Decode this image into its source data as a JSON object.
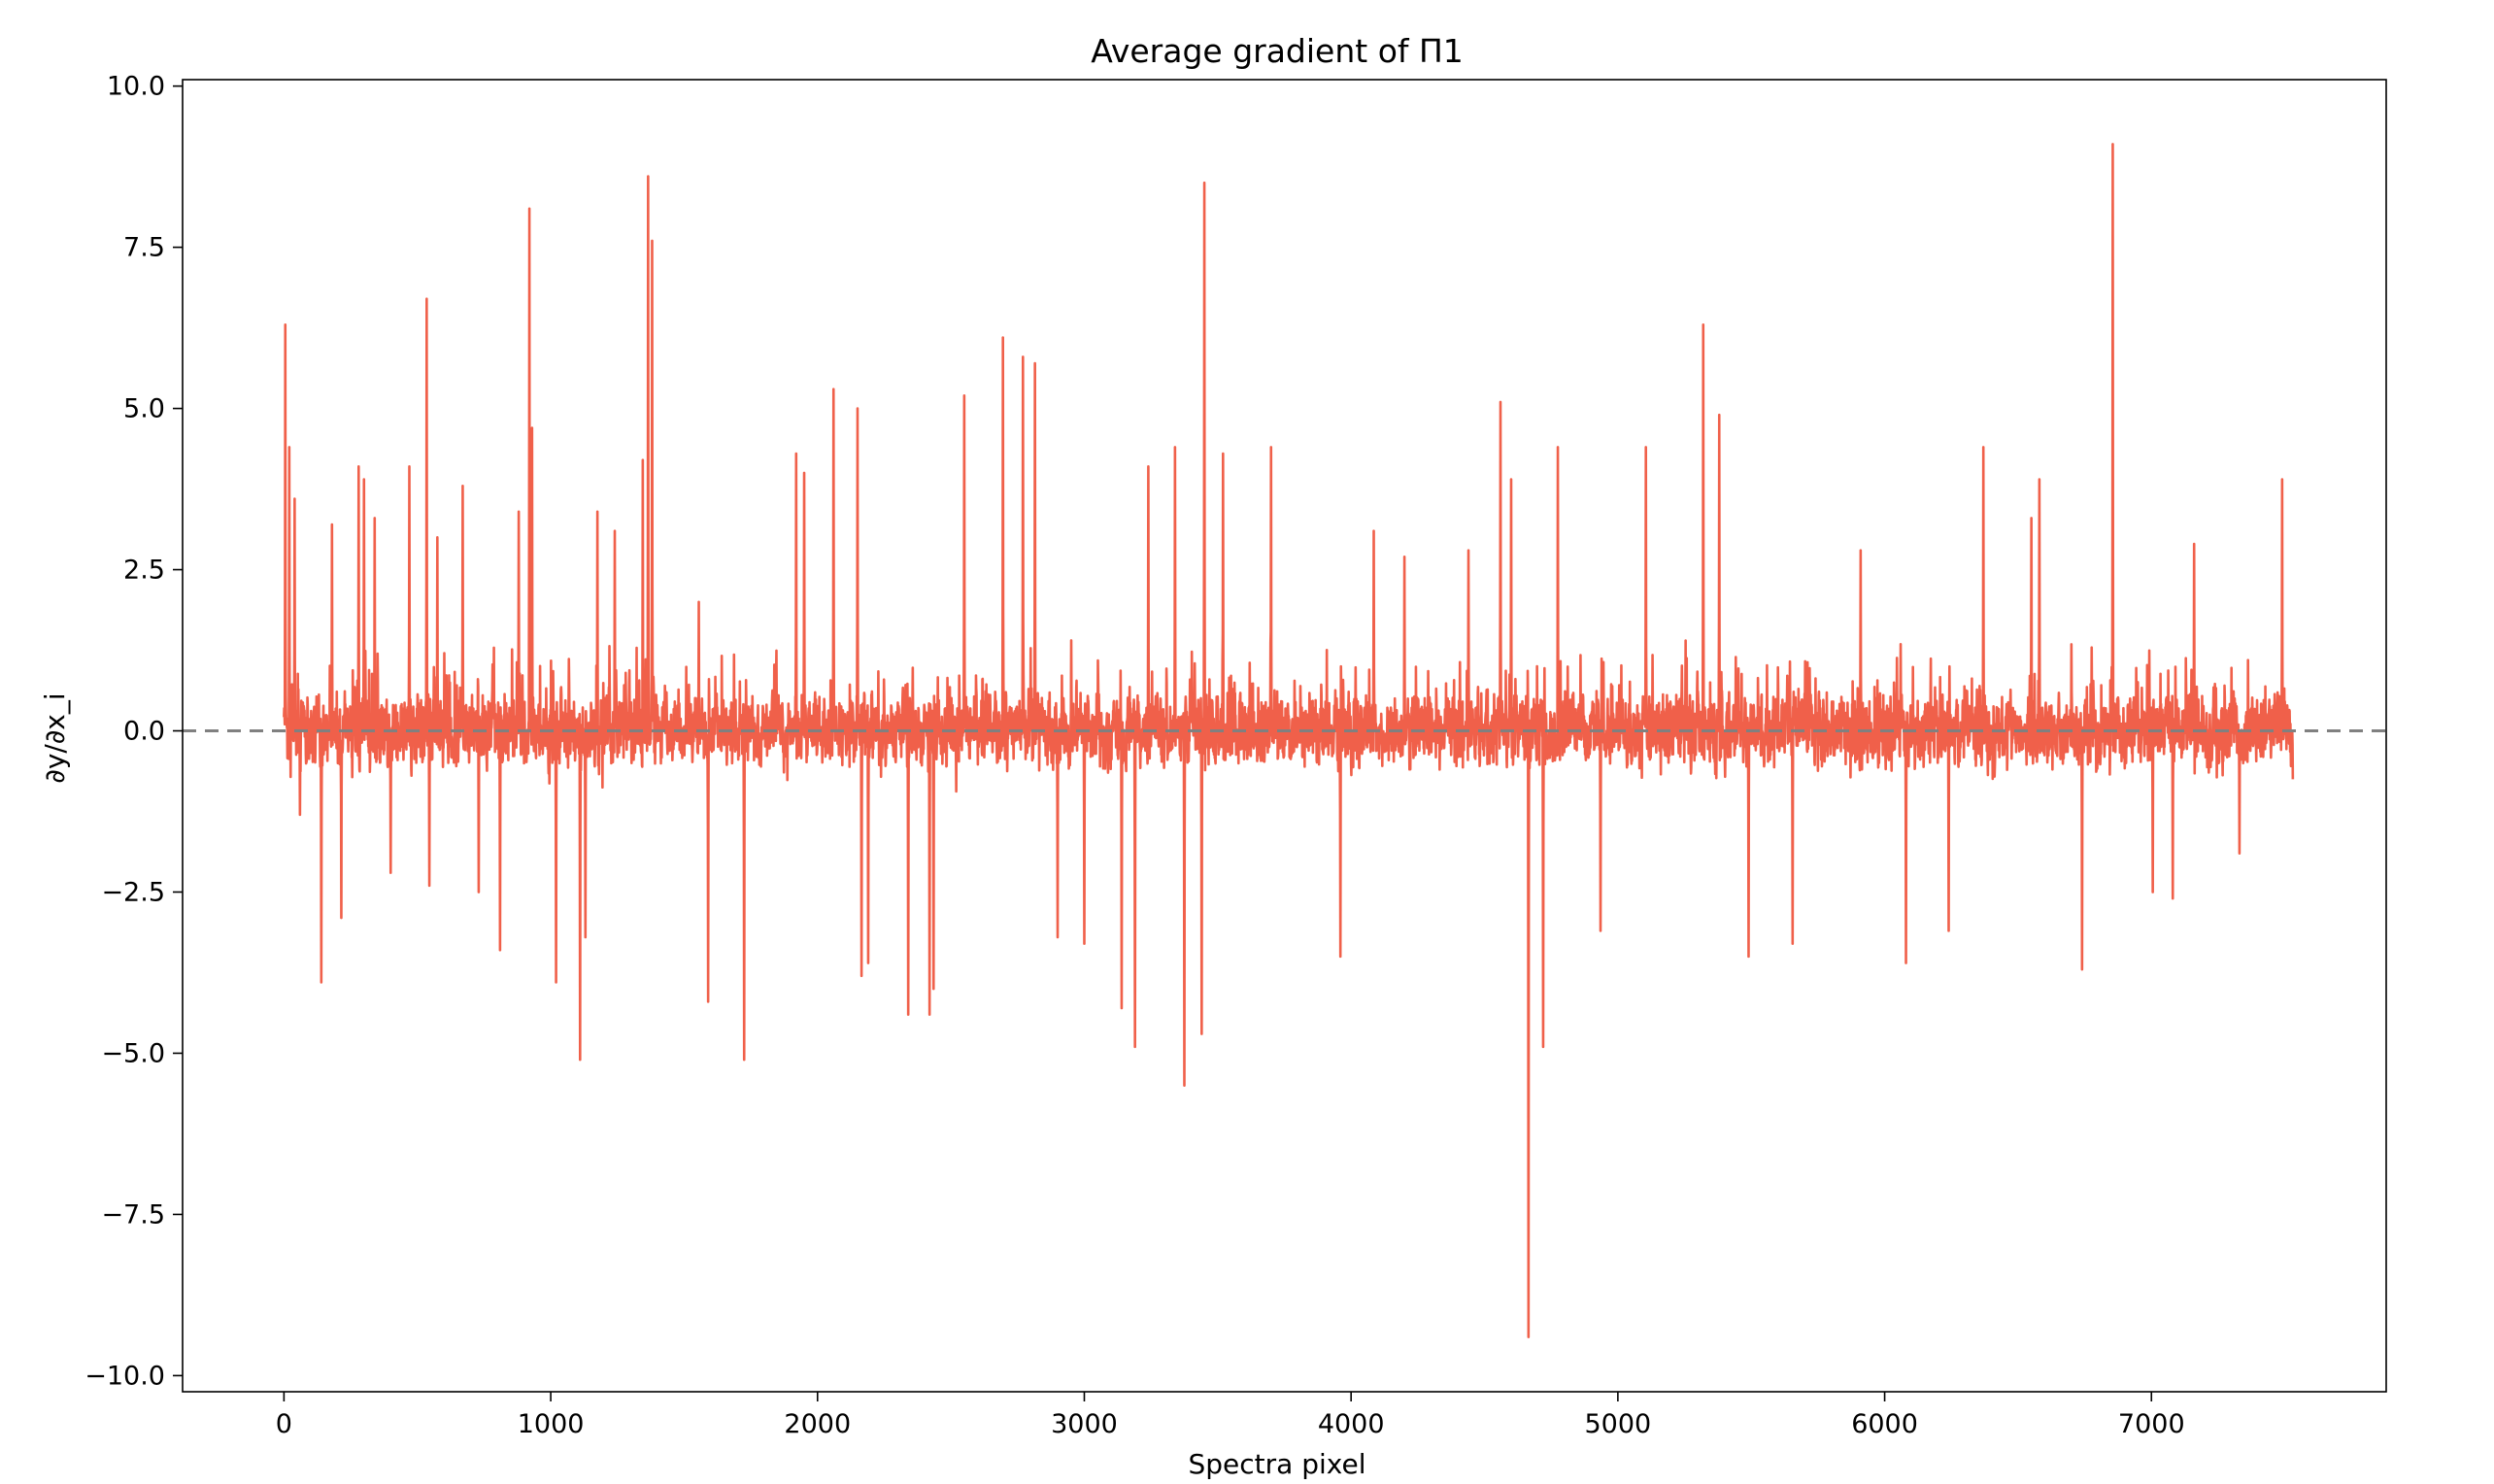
{
  "chart_data": {
    "type": "line",
    "title": "Average gradient of Π1",
    "xlabel": "Spectra pixel",
    "ylabel": "∂y/∂x_i",
    "xlim": [
      -380,
      7880
    ],
    "ylim": [
      -10.25,
      10.1
    ],
    "xticks": [
      0,
      1000,
      2000,
      3000,
      4000,
      5000,
      6000,
      7000
    ],
    "xtick_labels": [
      "0",
      "1000",
      "2000",
      "3000",
      "4000",
      "5000",
      "6000",
      "7000"
    ],
    "yticks": [
      10.0,
      7.5,
      5.0,
      2.5,
      0.0,
      -2.5,
      -5.0,
      -7.5,
      -10.0
    ],
    "ytick_labels": [
      "10.0",
      "7.5",
      "5.0",
      "2.5",
      "0.0",
      "−2.5",
      "−5.0",
      "−7.5",
      "−10.0"
    ],
    "grid": false,
    "reference_line": {
      "y": 0.0,
      "style": "dashed",
      "color": "#808080"
    },
    "series": [
      {
        "color": "#f0604a",
        "x_range": [
          0,
          7530
        ],
        "x_step": 1,
        "notable_points": [
          {
            "x": 5,
            "y": 6.3
          },
          {
            "x": 20,
            "y": 4.4
          },
          {
            "x": 40,
            "y": 3.6
          },
          {
            "x": 60,
            "y": -1.3
          },
          {
            "x": 140,
            "y": -3.9
          },
          {
            "x": 180,
            "y": 3.2
          },
          {
            "x": 215,
            "y": -2.9
          },
          {
            "x": 280,
            "y": 4.1
          },
          {
            "x": 300,
            "y": 3.9
          },
          {
            "x": 340,
            "y": 3.3
          },
          {
            "x": 400,
            "y": -2.2
          },
          {
            "x": 470,
            "y": 4.1
          },
          {
            "x": 535,
            "y": 6.7
          },
          {
            "x": 545,
            "y": -2.4
          },
          {
            "x": 575,
            "y": 3.0
          },
          {
            "x": 670,
            "y": 3.8
          },
          {
            "x": 730,
            "y": -2.5
          },
          {
            "x": 810,
            "y": -3.4
          },
          {
            "x": 880,
            "y": 3.4
          },
          {
            "x": 920,
            "y": 8.1
          },
          {
            "x": 930,
            "y": 4.7
          },
          {
            "x": 1020,
            "y": -3.9
          },
          {
            "x": 1110,
            "y": -5.1
          },
          {
            "x": 1130,
            "y": -3.2
          },
          {
            "x": 1175,
            "y": 3.4
          },
          {
            "x": 1240,
            "y": 3.1
          },
          {
            "x": 1345,
            "y": 4.2
          },
          {
            "x": 1365,
            "y": 8.6
          },
          {
            "x": 1380,
            "y": 7.6
          },
          {
            "x": 1555,
            "y": 2.0
          },
          {
            "x": 1590,
            "y": -4.2
          },
          {
            "x": 1725,
            "y": -5.1
          },
          {
            "x": 1920,
            "y": 4.3
          },
          {
            "x": 1950,
            "y": 4.0
          },
          {
            "x": 2060,
            "y": 5.3
          },
          {
            "x": 2150,
            "y": 5.0
          },
          {
            "x": 2165,
            "y": -3.8
          },
          {
            "x": 2190,
            "y": -3.6
          },
          {
            "x": 2340,
            "y": -4.4
          },
          {
            "x": 2420,
            "y": -4.4
          },
          {
            "x": 2435,
            "y": -4.0
          },
          {
            "x": 2550,
            "y": 5.2
          },
          {
            "x": 2695,
            "y": 6.1
          },
          {
            "x": 2770,
            "y": 5.8
          },
          {
            "x": 2815,
            "y": 5.7
          },
          {
            "x": 2900,
            "y": -3.2
          },
          {
            "x": 3000,
            "y": -3.3
          },
          {
            "x": 3140,
            "y": -4.3
          },
          {
            "x": 3190,
            "y": -4.9
          },
          {
            "x": 3240,
            "y": 4.1
          },
          {
            "x": 3340,
            "y": 4.4
          },
          {
            "x": 3375,
            "y": -5.5
          },
          {
            "x": 3440,
            "y": -4.7
          },
          {
            "x": 3450,
            "y": 8.5
          },
          {
            "x": 3520,
            "y": 4.3
          },
          {
            "x": 3700,
            "y": 4.4
          },
          {
            "x": 3960,
            "y": -3.5
          },
          {
            "x": 4085,
            "y": 3.1
          },
          {
            "x": 4200,
            "y": 2.7
          },
          {
            "x": 4440,
            "y": 2.8
          },
          {
            "x": 4560,
            "y": 5.1
          },
          {
            "x": 4600,
            "y": 3.9
          },
          {
            "x": 4665,
            "y": -9.4
          },
          {
            "x": 4720,
            "y": -4.9
          },
          {
            "x": 4775,
            "y": 4.4
          },
          {
            "x": 4935,
            "y": -3.1
          },
          {
            "x": 5105,
            "y": 4.4
          },
          {
            "x": 5320,
            "y": 6.3
          },
          {
            "x": 5380,
            "y": 4.9
          },
          {
            "x": 5490,
            "y": -3.5
          },
          {
            "x": 5655,
            "y": -3.3
          },
          {
            "x": 5910,
            "y": 2.8
          },
          {
            "x": 6080,
            "y": -3.6
          },
          {
            "x": 6240,
            "y": -3.1
          },
          {
            "x": 6370,
            "y": 4.4
          },
          {
            "x": 6550,
            "y": 3.3
          },
          {
            "x": 6580,
            "y": 3.9
          },
          {
            "x": 6740,
            "y": -3.7
          },
          {
            "x": 6855,
            "y": 9.1
          },
          {
            "x": 7005,
            "y": -2.5
          },
          {
            "x": 7080,
            "y": -2.6
          },
          {
            "x": 7160,
            "y": 2.9
          },
          {
            "x": 7330,
            "y": -1.9
          },
          {
            "x": 7490,
            "y": 3.9
          }
        ],
        "noise_amplitude": 0.9
      }
    ]
  }
}
